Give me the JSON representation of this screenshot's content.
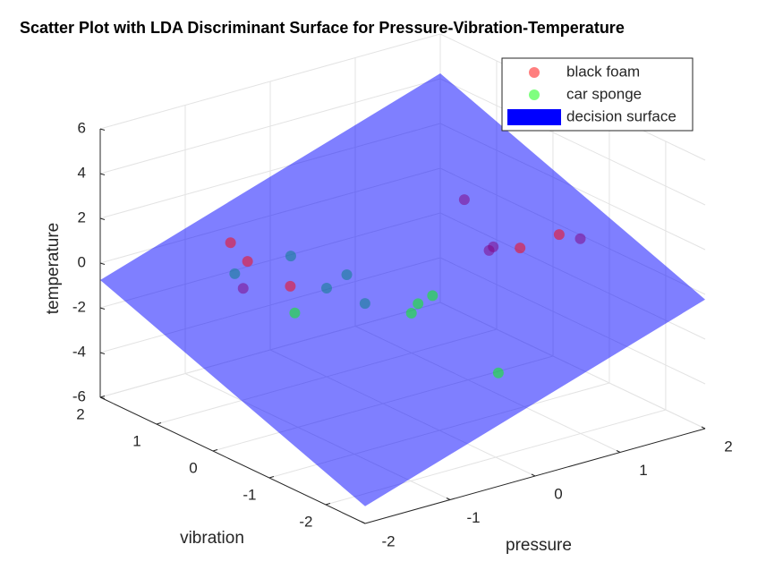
{
  "chart_data": {
    "type": "scatter3d",
    "title": "Scatter Plot with LDA Discriminant Surface for Pressure-Vibration-Temperature",
    "xlabel": "pressure",
    "ylabel": "vibration",
    "zlabel": "temperature",
    "xlim": [
      -2,
      2
    ],
    "ylim": [
      -2.7,
      2
    ],
    "zlim": [
      -6,
      6
    ],
    "xticks": [
      -2,
      -1,
      0,
      1,
      2
    ],
    "yticks": [
      -2,
      -1,
      0,
      1,
      2
    ],
    "zticks": [
      -6,
      -4,
      -2,
      0,
      2,
      4,
      6
    ],
    "grid": true,
    "legend": "northeast",
    "series": [
      {
        "name": "black foam",
        "color": "#ff0000",
        "x": [
          -1.13,
          -0.93,
          -1.09,
          0.95,
          1.41,
          -0.65,
          1.62,
          1.58,
          1.43,
          1.99
        ],
        "y": [
          1,
          1,
          0,
          -1,
          -1,
          1.5,
          1,
          0.5,
          0.2,
          -0.5
        ],
        "z": [
          1.19,
          0.14,
          0.4,
          1.15,
          1.26,
          -1.96,
          0.2,
          -1.43,
          -0.75,
          -0.14
        ]
      },
      {
        "name": "car sponge",
        "color": "#00ff00",
        "x": [
          -1.7,
          -0.25,
          -0.08,
          -0.66,
          -0.3,
          -0.55,
          -0.09,
          0,
          0.37,
          0.12
        ],
        "y": [
          -1,
          -1,
          -1,
          -1.5,
          -2.5,
          1.8,
          1.5,
          1,
          1.2,
          0.5
        ],
        "z": [
          1.05,
          -0.07,
          0.11,
          0.54,
          -1.31,
          -1.77,
          -1.11,
          -2.04,
          -2.07,
          -2.25
        ]
      }
    ],
    "surface": {
      "name": "decision surface",
      "color": "#0000ff",
      "x": [
        -2,
        2
      ],
      "y": [
        -2.7,
        2
      ],
      "z": [
        [
          -5.23,
          -0.23
        ],
        [
          -0.76,
          4.24
        ]
      ]
    }
  }
}
